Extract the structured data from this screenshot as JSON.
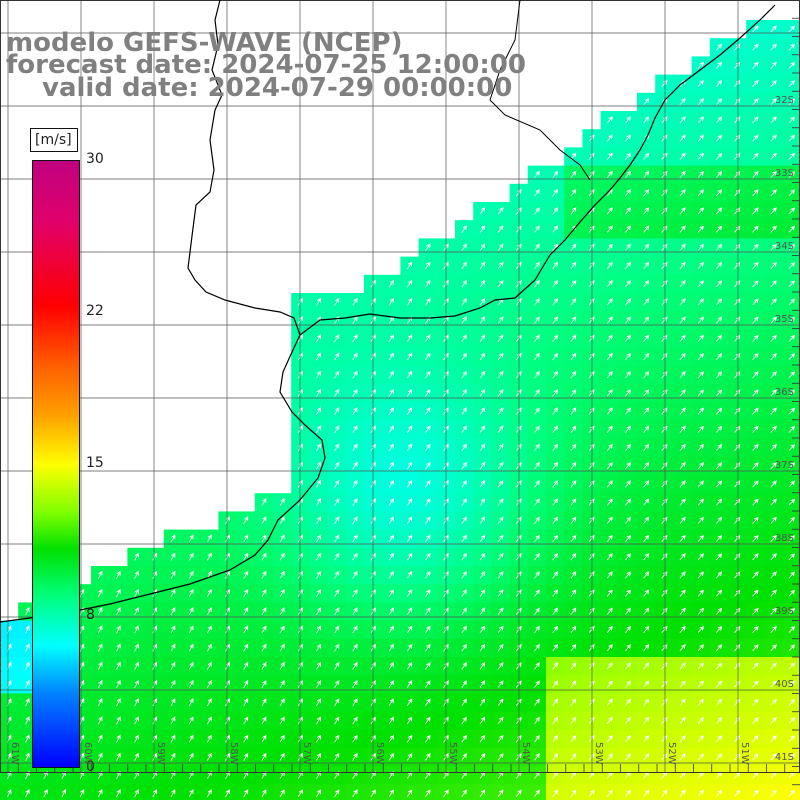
{
  "title": {
    "model": "modelo GEFS-WAVE (NCEP)",
    "forecast": "forecast date: 2024-07-25 12:00:00",
    "valid": "valid date: 2024-07-29 00:00:00"
  },
  "colorbar": {
    "unit": "[m/s]",
    "ticks": [
      "30",
      "22",
      "15",
      "8",
      "0"
    ],
    "tick_values": [
      30,
      22,
      15,
      8,
      0
    ]
  },
  "grid": {
    "lat_labels": [
      "32S",
      "33S",
      "34S",
      "35S",
      "36S",
      "37S",
      "38S",
      "39S",
      "40S",
      "41S"
    ],
    "lon_labels": [
      "61W",
      "60W",
      "59W",
      "58W",
      "57W",
      "56W",
      "55W",
      "54W",
      "53W",
      "52W",
      "51W"
    ]
  },
  "colors": {
    "land": "#ffffff",
    "coast": "#000000",
    "grid": "#555555",
    "arrows": "#ffffff",
    "title": "#808080"
  }
}
